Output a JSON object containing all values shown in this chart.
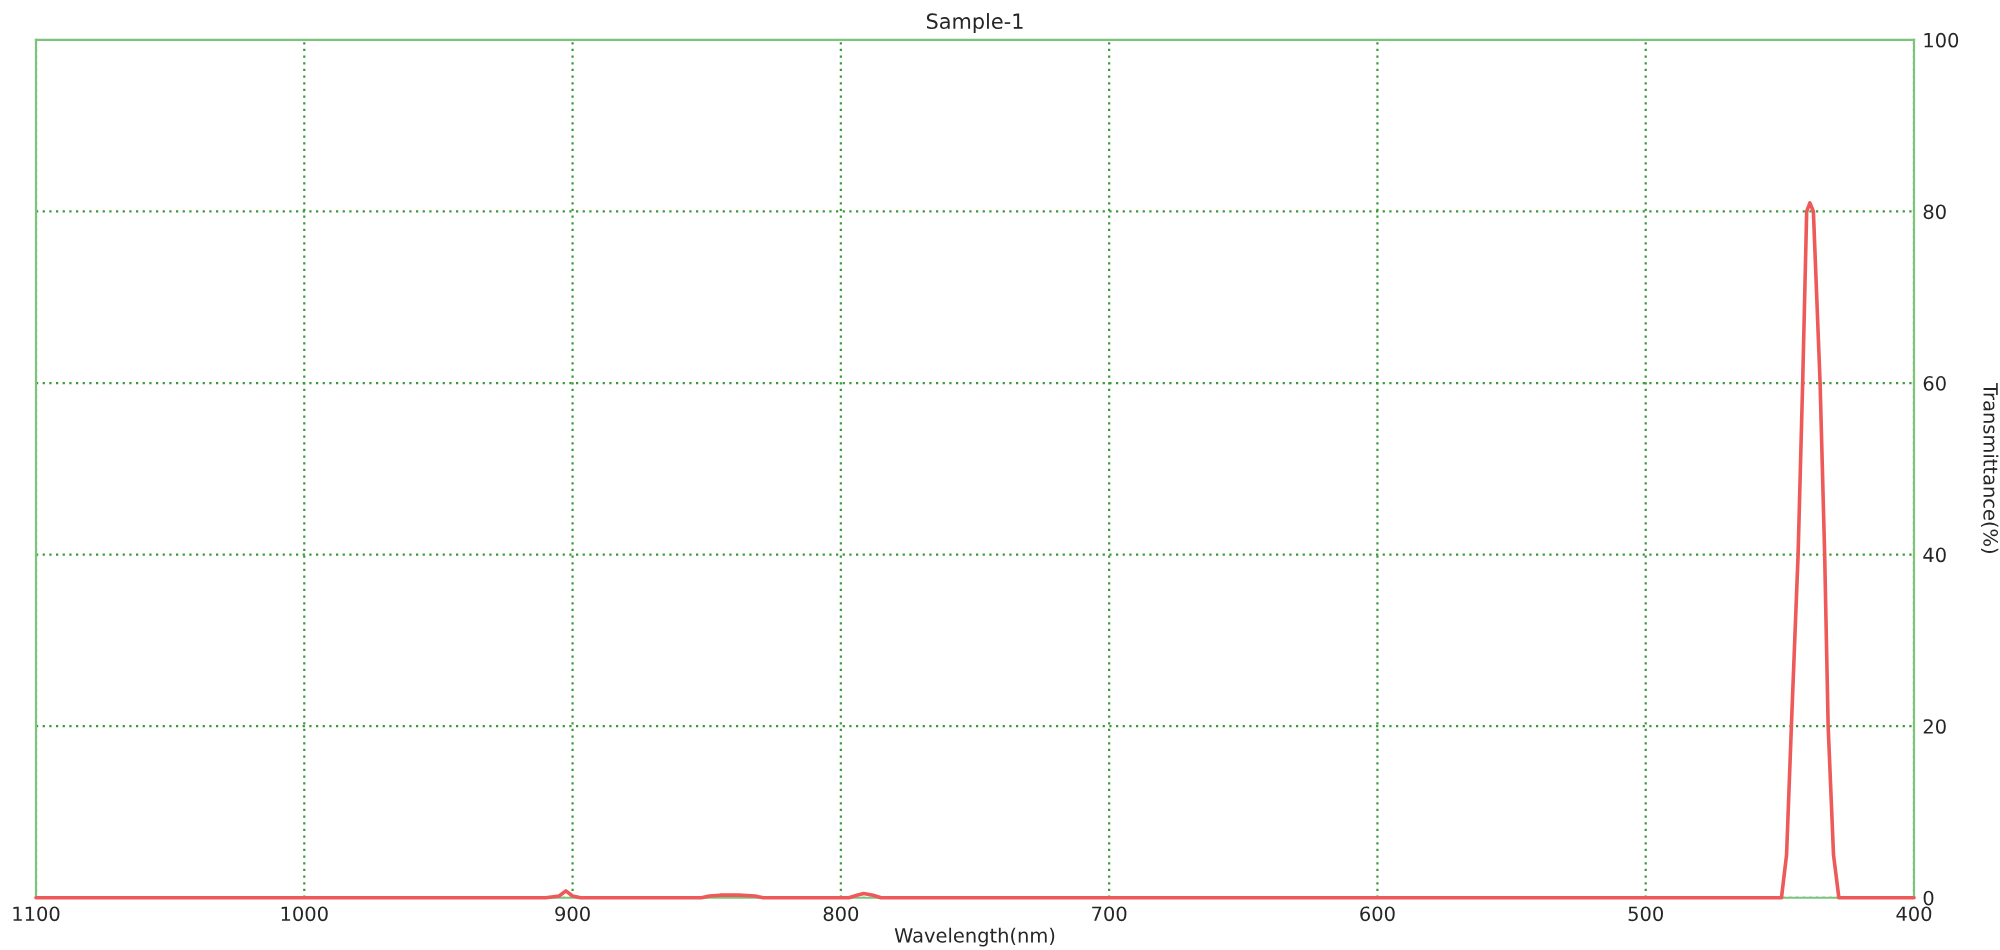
{
  "chart_data": {
    "type": "line",
    "title": "Sample-1",
    "xlabel": "Wavelength(nm)",
    "ylabel": "Transmittance(%)",
    "x": [
      1100,
      1000,
      910,
      905,
      902.5,
      900,
      897,
      852,
      849,
      845,
      838,
      832,
      829,
      797,
      794,
      791.5,
      788,
      785,
      700,
      600,
      500,
      455,
      449.4,
      447.5,
      445.7,
      443.2,
      441.5,
      440,
      438.8,
      437.5,
      435,
      433.3,
      432,
      430,
      428,
      420,
      400
    ],
    "values": [
      0,
      0,
      0,
      0.2,
      0.8,
      0.2,
      0,
      0,
      0.2,
      0.3,
      0.3,
      0.2,
      0,
      0,
      0.3,
      0.5,
      0.3,
      0,
      0,
      0,
      0,
      0,
      0,
      5,
      20,
      40,
      60,
      80,
      81,
      80,
      60,
      40,
      20,
      5,
      0,
      0,
      0
    ],
    "color": "#ee5a5a",
    "xlim": [
      1100,
      400
    ],
    "ylim": [
      0,
      100
    ],
    "xticks": [
      1100,
      1000,
      900,
      800,
      700,
      600,
      500,
      400
    ],
    "yticks": [
      0,
      20,
      40,
      60,
      80,
      100
    ],
    "grid": true
  }
}
